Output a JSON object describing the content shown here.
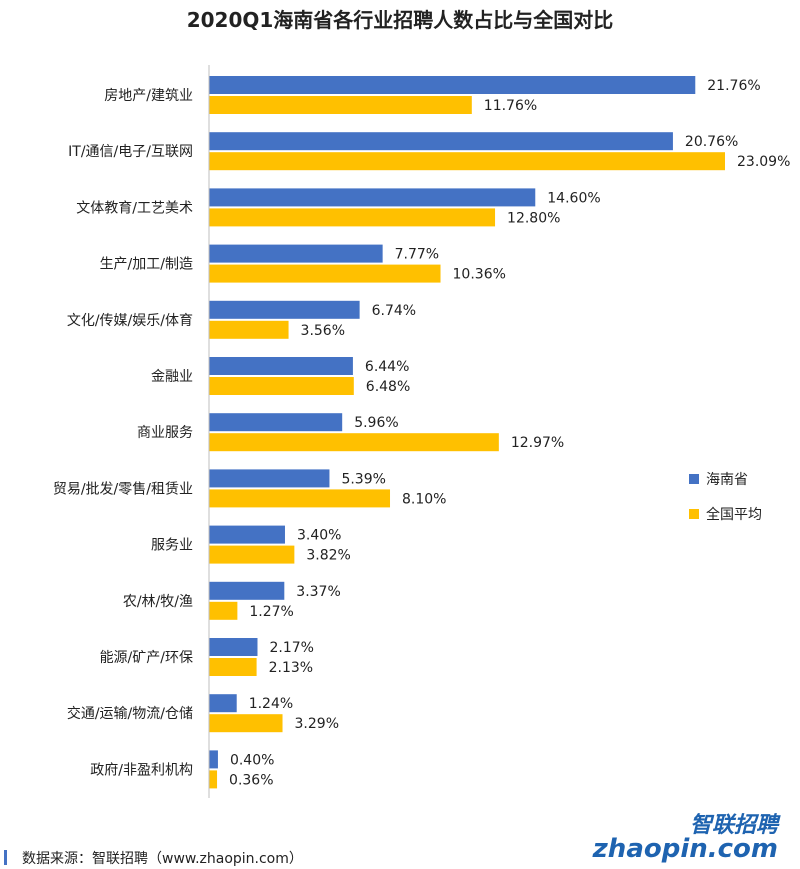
{
  "chart_data": {
    "type": "bar",
    "orientation": "horizontal",
    "title": "2020Q1海南省各行业招聘人数占比与全国对比",
    "categories": [
      "房地产/建筑业",
      "IT/通信/电子/互联网",
      "文体教育/工艺美术",
      "生产/加工/制造",
      "文化/传媒/娱乐/体育",
      "金融业",
      "商业服务",
      "贸易/批发/零售/租赁业",
      "服务业",
      "农/林/牧/渔",
      "能源/矿产/环保",
      "交通/运输/物流/仓储",
      "政府/非盈利机构"
    ],
    "series": [
      {
        "name": "海南省",
        "color": "#4472C4",
        "values": [
          21.76,
          20.76,
          14.6,
          7.77,
          6.74,
          6.44,
          5.96,
          5.39,
          3.4,
          3.37,
          2.17,
          1.24,
          0.4
        ],
        "labels": [
          "21.76%",
          "20.76%",
          "14.60%",
          "7.77%",
          "6.74%",
          "6.44%",
          "5.96%",
          "5.39%",
          "3.40%",
          "3.37%",
          "2.17%",
          "1.24%",
          "0.40%"
        ]
      },
      {
        "name": "全国平均",
        "color": "#FFC000",
        "values": [
          11.76,
          23.09,
          12.8,
          10.36,
          3.56,
          6.48,
          12.97,
          8.1,
          3.82,
          1.27,
          2.13,
          3.29,
          0.36
        ],
        "labels": [
          "11.76%",
          "23.09%",
          "12.80%",
          "10.36%",
          "3.56%",
          "6.48%",
          "12.97%",
          "8.10%",
          "3.82%",
          "1.27%",
          "2.13%",
          "3.29%",
          "0.36%"
        ]
      }
    ],
    "xlim": [
      0,
      23.09
    ],
    "grid": false,
    "legend_position": "right"
  },
  "source": "数据来源：智联招聘（www.zhaopin.com）",
  "logo": {
    "cn": "智联招聘",
    "en": "zhaopin.com"
  }
}
